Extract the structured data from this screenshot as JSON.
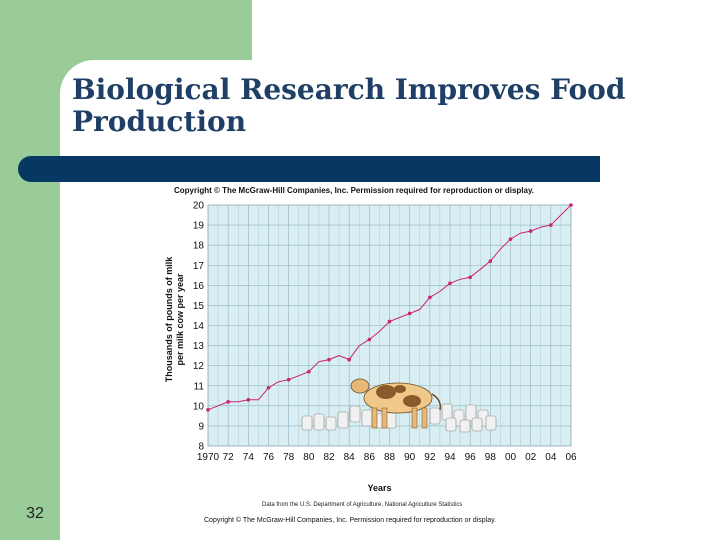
{
  "slide": {
    "title": "Biological Research Improves Food Production",
    "number": "32",
    "copyright_top": "Copyright © The McGraw-Hill Companies, Inc. Permission required for reproduction or display.",
    "copyright_bottom": "Copyright © The McGraw-Hill Companies, Inc. Permission required for reproduction or display.",
    "source": "Data from the U.S. Department of Agriculture, National Agriculture Statistics"
  },
  "chart_data": {
    "type": "line",
    "title": "",
    "xlabel": "Years",
    "ylabel": "Thousands of pounds of milk per milk cow per year",
    "xlim": [
      1970,
      2006
    ],
    "ylim": [
      8,
      20
    ],
    "x_ticks": [
      "1970",
      "72",
      "74",
      "76",
      "78",
      "80",
      "82",
      "84",
      "86",
      "88",
      "90",
      "92",
      "94",
      "96",
      "98",
      "00",
      "02",
      "04",
      "06"
    ],
    "y_ticks": [
      "8",
      "9",
      "10",
      "11",
      "12",
      "13",
      "14",
      "15",
      "16",
      "17",
      "18",
      "19",
      "20"
    ],
    "grid": true,
    "series": [
      {
        "color": "#cc2277",
        "x": [
          1970,
          1971,
          1972,
          1973,
          1974,
          1975,
          1976,
          1977,
          1978,
          1979,
          1980,
          1981,
          1982,
          1983,
          1984,
          1985,
          1986,
          1987,
          1988,
          1989,
          1990,
          1991,
          1992,
          1993,
          1994,
          1995,
          1996,
          1997,
          1998,
          1999,
          2000,
          2001,
          2002,
          2003,
          2004,
          2005,
          2006
        ],
        "values": [
          9.8,
          10.0,
          10.2,
          10.2,
          10.3,
          10.3,
          10.9,
          11.2,
          11.3,
          11.5,
          11.7,
          12.2,
          12.3,
          12.5,
          12.3,
          13.0,
          13.3,
          13.7,
          14.2,
          14.4,
          14.6,
          14.8,
          15.4,
          15.7,
          16.1,
          16.3,
          16.4,
          16.8,
          17.2,
          17.8,
          18.3,
          18.6,
          18.7,
          18.9,
          19.0,
          19.5,
          20.0
        ]
      }
    ]
  }
}
